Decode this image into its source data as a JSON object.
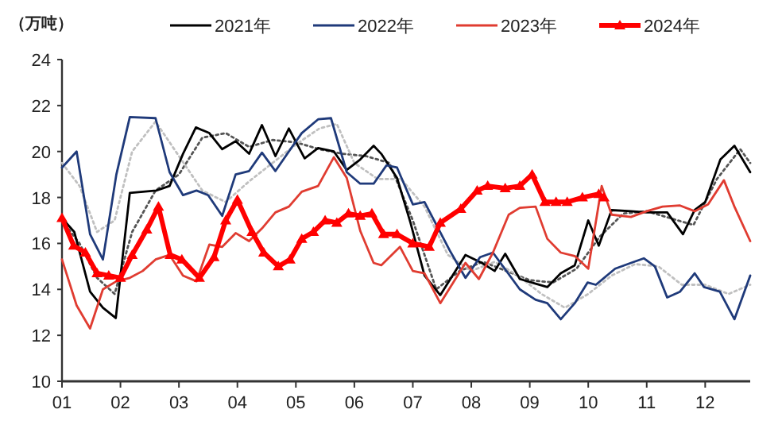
{
  "chart_data": {
    "type": "line",
    "ylabel": "（万吨）",
    "xlim": [
      1,
      12.77
    ],
    "ylim": [
      10,
      24
    ],
    "xticks": [
      {
        "value": 1,
        "label": "01"
      },
      {
        "value": 2,
        "label": "02"
      },
      {
        "value": 3,
        "label": "03"
      },
      {
        "value": 4,
        "label": "04"
      },
      {
        "value": 5,
        "label": "05"
      },
      {
        "value": 6,
        "label": "06"
      },
      {
        "value": 7,
        "label": "07"
      },
      {
        "value": 8,
        "label": "08"
      },
      {
        "value": 9,
        "label": "09"
      },
      {
        "value": 10,
        "label": "10"
      },
      {
        "value": 11,
        "label": "11"
      },
      {
        "value": 12,
        "label": "12"
      }
    ],
    "yticks": [
      10,
      12,
      14,
      16,
      18,
      20,
      22,
      24
    ],
    "grid": false,
    "legend": "top",
    "series": [
      {
        "color": "#555555",
        "line_style": "dotted",
        "marker": "none",
        "x": [
          1.0,
          1.3,
          1.6,
          1.9,
          2.2,
          2.6,
          3.0,
          3.4,
          3.8,
          4.2,
          4.6,
          5.0,
          5.4,
          5.8,
          6.2,
          6.6,
          7.0,
          7.4,
          7.8,
          8.2,
          8.6,
          9.0,
          9.4,
          9.8,
          10.2,
          10.6,
          11.0,
          11.4,
          11.8,
          12.2,
          12.6,
          12.77
        ],
        "values": [
          17.0,
          16.0,
          14.5,
          13.8,
          16.5,
          18.3,
          19.0,
          20.6,
          20.8,
          20.2,
          20.5,
          20.4,
          20.1,
          19.9,
          19.8,
          19.5,
          17.0,
          14.0,
          14.8,
          15.2,
          14.8,
          14.4,
          14.3,
          14.9,
          16.3,
          17.3,
          17.4,
          17.1,
          16.8,
          18.8,
          20.1,
          19.5
        ]
      },
      {
        "color": "#c0c0c0",
        "line_style": "dotted",
        "marker": "none",
        "x": [
          1.0,
          1.3,
          1.6,
          1.9,
          2.2,
          2.6,
          3.0,
          3.4,
          3.8,
          4.2,
          4.6,
          5.0,
          5.4,
          5.7,
          6.0,
          6.4,
          6.8,
          7.2,
          7.6,
          8.0,
          8.4,
          8.8,
          9.2,
          9.6,
          10.0,
          10.4,
          10.8,
          11.2,
          11.6,
          12.0,
          12.4,
          12.77
        ],
        "values": [
          19.5,
          18.5,
          16.5,
          17.0,
          20.0,
          21.3,
          19.8,
          18.3,
          17.8,
          18.7,
          19.5,
          20.3,
          21.0,
          21.2,
          19.5,
          18.8,
          18.8,
          17.6,
          15.5,
          14.8,
          15.2,
          14.6,
          13.8,
          13.2,
          13.8,
          14.6,
          15.1,
          15.0,
          14.2,
          14.2,
          13.8,
          14.2
        ]
      },
      {
        "name": "2021年",
        "color": "#000000",
        "line_style": "solid",
        "marker": "none",
        "x": [
          1.0,
          1.21,
          1.48,
          1.7,
          1.92,
          2.16,
          2.61,
          2.84,
          3.07,
          3.29,
          3.52,
          3.74,
          3.97,
          4.2,
          4.42,
          4.65,
          4.88,
          5.15,
          5.38,
          5.65,
          5.87,
          6.1,
          6.33,
          6.46,
          6.73,
          6.96,
          7.2,
          7.47,
          7.9,
          8.18,
          8.4,
          8.58,
          8.83,
          9.1,
          9.3,
          9.53,
          9.77,
          10.0,
          10.18,
          10.4,
          10.73,
          11.0,
          11.35,
          11.62,
          11.82,
          12.0,
          12.26,
          12.5,
          12.77
        ],
        "values": [
          17.1,
          16.5,
          13.9,
          13.2,
          12.75,
          18.2,
          18.3,
          18.5,
          19.9,
          21.05,
          20.8,
          20.1,
          20.45,
          19.9,
          21.15,
          19.8,
          21.0,
          19.7,
          20.15,
          20.0,
          19.2,
          19.65,
          20.25,
          19.9,
          18.85,
          16.9,
          14.6,
          13.75,
          15.5,
          15.15,
          14.8,
          15.55,
          14.45,
          14.25,
          14.1,
          14.7,
          15.05,
          17.0,
          15.9,
          17.45,
          17.4,
          17.35,
          17.35,
          16.4,
          17.45,
          17.8,
          19.65,
          20.25,
          19.1
        ]
      },
      {
        "name": "2022年",
        "color": "#1f3a7a",
        "line_style": "solid",
        "marker": "none",
        "x": [
          1.0,
          1.25,
          1.48,
          1.7,
          1.93,
          2.16,
          2.6,
          2.84,
          3.07,
          3.3,
          3.5,
          3.74,
          3.97,
          4.2,
          4.42,
          4.65,
          4.88,
          5.1,
          5.38,
          5.6,
          5.87,
          6.1,
          6.33,
          6.55,
          6.73,
          7.0,
          7.2,
          7.63,
          7.9,
          8.15,
          8.37,
          8.83,
          9.1,
          9.3,
          9.53,
          9.77,
          9.99,
          10.13,
          10.46,
          10.73,
          10.95,
          11.14,
          11.35,
          11.57,
          11.82,
          11.98,
          12.25,
          12.5,
          12.77
        ],
        "values": [
          19.3,
          20.0,
          16.4,
          15.3,
          19.0,
          21.5,
          21.45,
          19.1,
          18.1,
          18.3,
          18.1,
          17.2,
          19.0,
          19.15,
          19.95,
          19.15,
          20.0,
          20.8,
          21.4,
          21.45,
          19.1,
          18.6,
          18.6,
          19.4,
          19.3,
          17.7,
          17.8,
          15.7,
          14.5,
          15.4,
          15.6,
          14.0,
          13.55,
          13.4,
          12.7,
          13.4,
          14.3,
          14.2,
          14.9,
          15.15,
          15.35,
          15.0,
          13.65,
          13.9,
          14.7,
          14.1,
          13.9,
          12.7,
          14.6
        ]
      },
      {
        "name": "2023年",
        "color": "#e03c31",
        "line_style": "solid",
        "marker": "none",
        "x": [
          1.0,
          1.25,
          1.48,
          1.7,
          1.93,
          2.16,
          2.38,
          2.6,
          2.84,
          3.07,
          3.3,
          3.52,
          3.74,
          3.97,
          4.2,
          4.42,
          4.65,
          4.88,
          5.1,
          5.38,
          5.65,
          5.87,
          6.1,
          6.33,
          6.46,
          6.78,
          7.0,
          7.2,
          7.47,
          7.9,
          8.13,
          8.37,
          8.64,
          8.83,
          9.1,
          9.3,
          9.53,
          9.77,
          10.0,
          10.23,
          10.4,
          10.73,
          11.0,
          11.27,
          11.57,
          11.82,
          12.05,
          12.32,
          12.5,
          12.77
        ],
        "values": [
          15.3,
          13.3,
          12.3,
          14.0,
          14.35,
          14.5,
          14.8,
          15.3,
          15.5,
          14.6,
          14.35,
          15.95,
          15.85,
          16.45,
          16.1,
          16.65,
          17.35,
          17.6,
          18.25,
          18.5,
          19.75,
          18.85,
          16.55,
          15.15,
          15.05,
          15.85,
          14.8,
          14.7,
          13.4,
          15.15,
          14.45,
          15.6,
          17.25,
          17.55,
          17.6,
          16.2,
          15.6,
          15.45,
          14.9,
          18.5,
          17.25,
          17.15,
          17.4,
          17.6,
          17.65,
          17.4,
          17.7,
          18.75,
          17.6,
          16.1
        ]
      },
      {
        "name": "2024年",
        "color": "#ff0000",
        "line_style": "solid",
        "marker": "triangle",
        "x": [
          1.0,
          1.2,
          1.4,
          1.6,
          1.8,
          2.0,
          2.2,
          2.45,
          2.65,
          2.85,
          3.05,
          3.35,
          3.6,
          3.8,
          4.0,
          4.25,
          4.45,
          4.7,
          4.9,
          5.1,
          5.3,
          5.5,
          5.7,
          5.9,
          6.1,
          6.3,
          6.5,
          6.73,
          7.0,
          7.28,
          7.47,
          7.82,
          8.1,
          8.28,
          8.58,
          8.83,
          9.04,
          9.26,
          9.45,
          9.64,
          9.9,
          10.18,
          10.27
        ],
        "values": [
          17.1,
          15.9,
          15.6,
          14.7,
          14.6,
          14.5,
          15.5,
          16.6,
          17.6,
          15.5,
          15.3,
          14.5,
          15.4,
          17.0,
          17.9,
          16.5,
          15.6,
          15.0,
          15.3,
          16.2,
          16.5,
          17.0,
          16.9,
          17.3,
          17.2,
          17.3,
          16.4,
          16.4,
          16.0,
          15.85,
          16.9,
          17.5,
          18.3,
          18.5,
          18.4,
          18.5,
          19.0,
          17.8,
          17.8,
          17.8,
          18.0,
          18.15,
          18.0
        ]
      }
    ]
  }
}
